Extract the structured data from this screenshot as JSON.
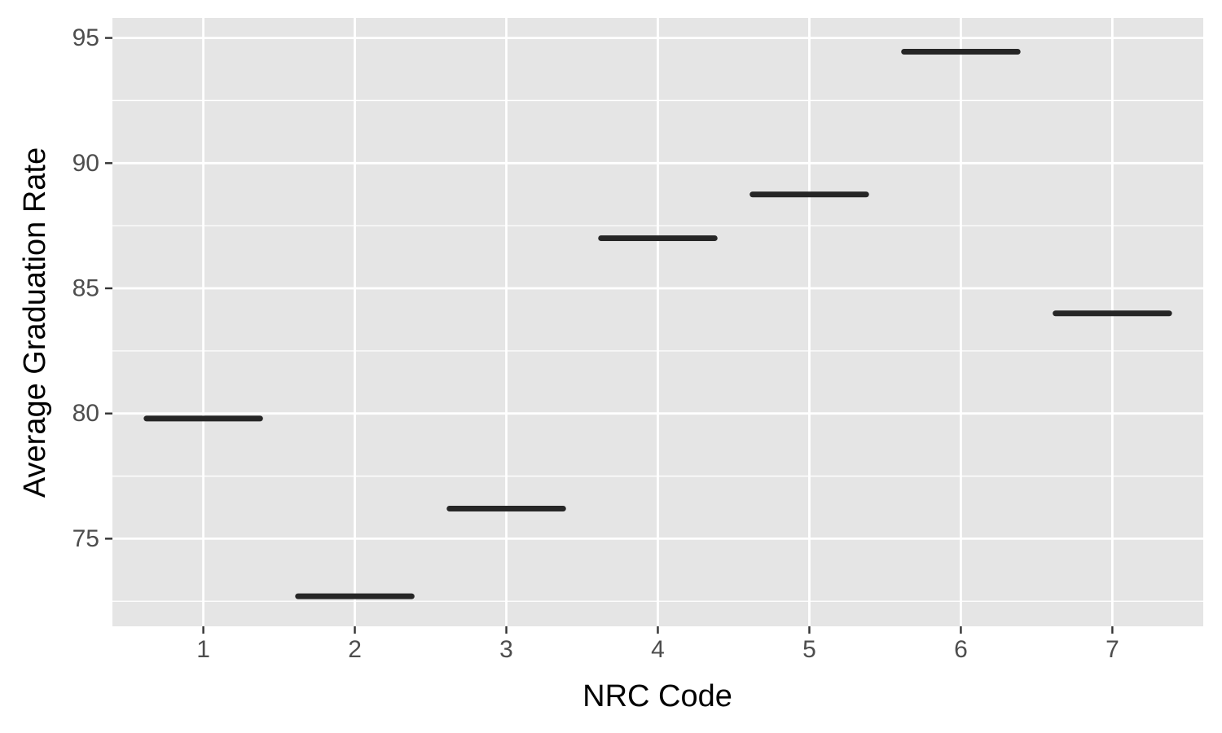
{
  "chart_data": {
    "type": "crossbar",
    "x_categories": [
      "1",
      "2",
      "3",
      "4",
      "5",
      "6",
      "7"
    ],
    "values": [
      79.8,
      72.7,
      76.2,
      87.0,
      88.75,
      94.45,
      84.0
    ],
    "xlabel": "NRC Code",
    "ylabel": "Average Graduation Rate",
    "ylim": [
      71.5,
      95.8
    ],
    "y_ticks": [
      75,
      80,
      85,
      90,
      95
    ],
    "grid": true,
    "legend": "none",
    "colors": {
      "panel_background": "#e5e5e5",
      "grid": "#ffffff",
      "mark": "#262626",
      "tick_text": "#4d4d4d"
    }
  }
}
